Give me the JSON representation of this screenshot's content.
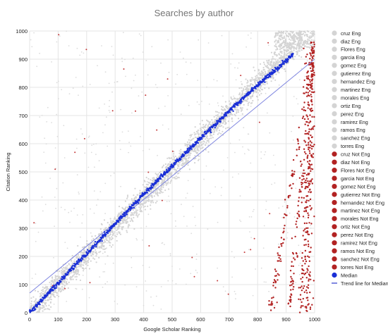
{
  "chart_data": {
    "type": "scatter",
    "title": "Searches by author",
    "xlabel": "Google Scholar Ranking",
    "ylabel": "Citation Ranking",
    "xlim": [
      0,
      1000
    ],
    "ylim": [
      0,
      1000
    ],
    "x_ticks": [
      0,
      100,
      200,
      300,
      400,
      500,
      600,
      700,
      800,
      900,
      1000
    ],
    "y_ticks": [
      0,
      100,
      200,
      300,
      400,
      500,
      600,
      700,
      800,
      900,
      1000
    ],
    "grid": true,
    "legend_position": "right",
    "series": [
      {
        "name": "cruz Eng",
        "color": "#d4d4d4",
        "group": "eng"
      },
      {
        "name": "diaz Eng",
        "color": "#d4d4d4",
        "group": "eng"
      },
      {
        "name": "Flores Eng",
        "color": "#d4d4d4",
        "group": "eng"
      },
      {
        "name": "garcia Eng",
        "color": "#d4d4d4",
        "group": "eng"
      },
      {
        "name": "gomez Eng",
        "color": "#d4d4d4",
        "group": "eng"
      },
      {
        "name": "gutierrez Eng",
        "color": "#d4d4d4",
        "group": "eng"
      },
      {
        "name": "hernandez Eng",
        "color": "#d4d4d4",
        "group": "eng"
      },
      {
        "name": "martinez Eng",
        "color": "#d4d4d4",
        "group": "eng"
      },
      {
        "name": "morales Eng",
        "color": "#d4d4d4",
        "group": "eng"
      },
      {
        "name": "ortiz Eng",
        "color": "#d4d4d4",
        "group": "eng"
      },
      {
        "name": "perez Eng",
        "color": "#d4d4d4",
        "group": "eng"
      },
      {
        "name": "ramirez Eng",
        "color": "#d4d4d4",
        "group": "eng"
      },
      {
        "name": "ramos Eng",
        "color": "#d4d4d4",
        "group": "eng"
      },
      {
        "name": "sanchez Eng",
        "color": "#d4d4d4",
        "group": "eng"
      },
      {
        "name": "torres Eng",
        "color": "#d4d4d4",
        "group": "eng"
      },
      {
        "name": "cruz Not Eng",
        "color": "#b22222",
        "group": "not-eng"
      },
      {
        "name": "diaz Not Eng",
        "color": "#b22222",
        "group": "not-eng"
      },
      {
        "name": "Flores Not Eng",
        "color": "#b22222",
        "group": "not-eng"
      },
      {
        "name": "garcia Not Eng",
        "color": "#b22222",
        "group": "not-eng"
      },
      {
        "name": "gomez Not Eng",
        "color": "#b22222",
        "group": "not-eng"
      },
      {
        "name": "gutierrez Not Eng",
        "color": "#b22222",
        "group": "not-eng"
      },
      {
        "name": "hernandez Not Eng",
        "color": "#b22222",
        "group": "not-eng"
      },
      {
        "name": "martinez Not Eng",
        "color": "#b22222",
        "group": "not-eng"
      },
      {
        "name": "morales Not Eng",
        "color": "#b22222",
        "group": "not-eng"
      },
      {
        "name": "ortiz Not Eng",
        "color": "#b22222",
        "group": "not-eng"
      },
      {
        "name": "perez Not Eng",
        "color": "#b22222",
        "group": "not-eng"
      },
      {
        "name": "ramirez Not Eng",
        "color": "#b22222",
        "group": "not-eng"
      },
      {
        "name": "ramos Not Eng",
        "color": "#b22222",
        "group": "not-eng"
      },
      {
        "name": "sanchez Not Eng",
        "color": "#b22222",
        "group": "not-eng"
      },
      {
        "name": "torres Not Eng",
        "color": "#b22222",
        "group": "not-eng"
      },
      {
        "name": "Median",
        "color": "#1a2fd6",
        "group": "median",
        "x": [
          0,
          50,
          100,
          150,
          200,
          250,
          300,
          350,
          400,
          450,
          500,
          550,
          600,
          650,
          700,
          750,
          800,
          850,
          900,
          925
        ],
        "y": [
          0,
          52,
          105,
          160,
          210,
          262,
          315,
          368,
          420,
          472,
          520,
          570,
          620,
          668,
          715,
          762,
          808,
          850,
          895,
          920
        ]
      },
      {
        "name": "Trend line for Median",
        "color": "#7f86e0",
        "group": "trend",
        "x": [
          0,
          1000
        ],
        "y": [
          70,
          900
        ]
      }
    ]
  }
}
